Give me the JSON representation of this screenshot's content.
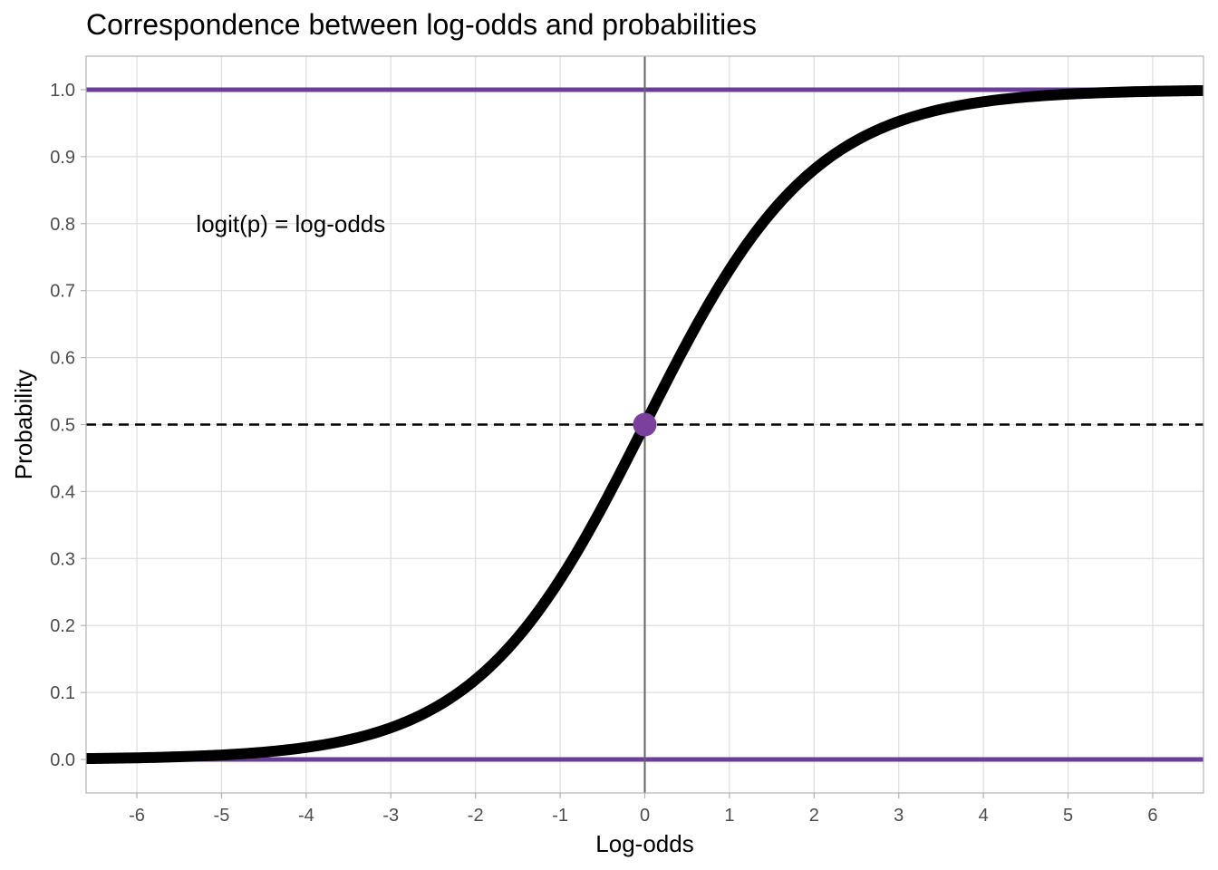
{
  "chart_data": {
    "type": "line",
    "title": "Correspondence between log-odds and probabilities",
    "xlabel": "Log-odds",
    "ylabel": "Probability",
    "xlim": [
      -6.6,
      6.6
    ],
    "ylim": [
      -0.05,
      1.05
    ],
    "x_ticks": [
      -6,
      -5,
      -4,
      -3,
      -2,
      -1,
      0,
      1,
      2,
      3,
      4,
      5,
      6
    ],
    "y_ticks": [
      0.0,
      0.1,
      0.2,
      0.3,
      0.4,
      0.5,
      0.6,
      0.7,
      0.8,
      0.9,
      1.0
    ],
    "y_tick_labels": [
      "0.0",
      "0.1",
      "0.2",
      "0.3",
      "0.4",
      "0.5",
      "0.6",
      "0.7",
      "0.8",
      "0.9",
      "1.0"
    ],
    "grid": true,
    "series": [
      {
        "x": [
          -6.6,
          -6,
          -5,
          -4,
          -3,
          -2.5,
          -2,
          -1.5,
          -1,
          -0.5,
          0,
          0.5,
          1,
          1.5,
          2,
          2.5,
          3,
          4,
          5,
          6,
          6.6
        ],
        "y": [
          0.0014,
          0.0025,
          0.0067,
          0.018,
          0.047,
          0.076,
          0.119,
          0.182,
          0.269,
          0.378,
          0.5,
          0.622,
          0.731,
          0.818,
          0.881,
          0.924,
          0.953,
          0.982,
          0.993,
          0.9975,
          0.9986
        ],
        "color": "#000000"
      }
    ],
    "reference_lines": [
      {
        "orientation": "horizontal",
        "value": 1.0,
        "style": "solid",
        "color": "#6a3d9a"
      },
      {
        "orientation": "horizontal",
        "value": 0.0,
        "style": "solid",
        "color": "#6a3d9a"
      },
      {
        "orientation": "horizontal",
        "value": 0.5,
        "style": "dashed",
        "color": "#000000"
      },
      {
        "orientation": "vertical",
        "value": 0,
        "style": "solid",
        "color": "#666666"
      }
    ],
    "points": [
      {
        "x": 0,
        "y": 0.5,
        "color": "#7b3f9e"
      }
    ],
    "annotations": [
      {
        "text": "logit(p) = log-odds",
        "x": -5.3,
        "y": 0.8
      }
    ]
  }
}
